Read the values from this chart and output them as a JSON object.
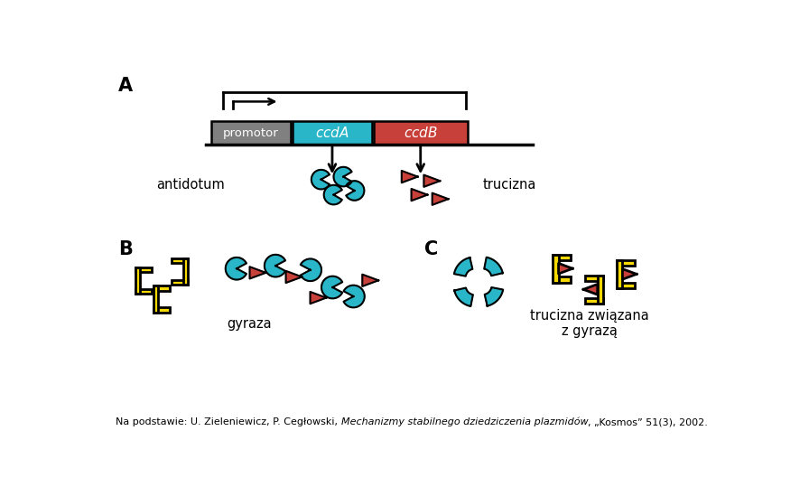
{
  "bg_color": "#ffffff",
  "promotor_color": "#808080",
  "ccdA_color": "#29b6c8",
  "ccdB_color": "#c8403a",
  "antidotum_color": "#29b6c8",
  "trucizna_color": "#c8403a",
  "gyrase_color": "#f5d800",
  "label_A": "A",
  "label_B": "B",
  "label_C": "C",
  "text_promotor": "promotor",
  "text_ccdA": "ccdA",
  "text_ccdB": "ccdB",
  "text_antidotum": "antidotum",
  "text_trucizna": "trucizna",
  "text_gyraza": "gyraza",
  "text_trucizna_zwiazana": "trucizna związana\nz gyrazą",
  "figsize": [
    8.96,
    5.39
  ],
  "dpi": 100
}
